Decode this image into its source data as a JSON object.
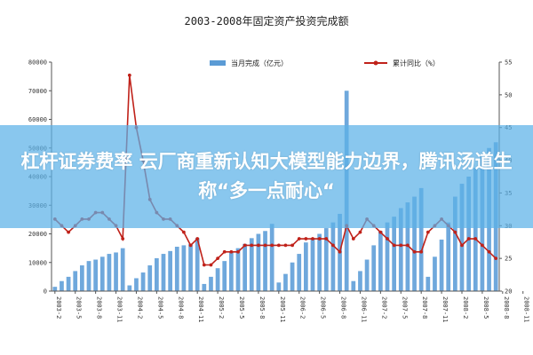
{
  "chart_data": {
    "type": "bar",
    "title": "2003-2008年固定资产投资完成额",
    "legend": [
      {
        "label": "当月完成（亿元）",
        "kind": "bar",
        "color": "#5b9bd5"
      },
      {
        "label": "累计同比（%）",
        "kind": "line",
        "color": "#c0221a"
      }
    ],
    "categories": [
      "03-2",
      "03-3",
      "03-4",
      "03-5",
      "03-6",
      "03-7",
      "03-8",
      "03-9",
      "03-10",
      "03-11",
      "03-12",
      "04-2",
      "04-3",
      "04-4",
      "04-5",
      "04-6",
      "04-7",
      "04-8",
      "04-9",
      "04-10",
      "04-11",
      "04-12",
      "05-2",
      "05-3",
      "05-4",
      "05-5",
      "05-6",
      "05-7",
      "05-8",
      "05-9",
      "05-10",
      "05-11",
      "05-12",
      "06-2",
      "06-3",
      "06-4",
      "06-5",
      "06-6",
      "06-7",
      "06-8",
      "06-9",
      "06-10",
      "06-11",
      "06-12",
      "07-2",
      "07-3",
      "07-4",
      "07-5",
      "07-6",
      "07-7",
      "07-8",
      "07-9",
      "07-10",
      "07-11",
      "07-12",
      "08-2",
      "08-3",
      "08-4",
      "08-5",
      "08-6",
      "08-7",
      "08-8",
      "08-9",
      "08-10",
      "08-11",
      "08-12"
    ],
    "x_tick_labels": [
      "2003-2",
      "2003-5",
      "2003-8",
      "2003-11",
      "2004-2",
      "2004-5",
      "2004-8",
      "2004-11",
      "2005-2",
      "2005-5",
      "2005-8",
      "2005-11",
      "2006-2",
      "2006-5",
      "2006-8",
      "2006-11",
      "2007-2",
      "2007-5",
      "2007-8",
      "2007-11",
      "2008-2",
      "2008-5",
      "2008-8",
      "2008-11"
    ],
    "series": [
      {
        "name": "当月完成（亿元）",
        "axis": "left",
        "values": [
          1500,
          3500,
          5000,
          7000,
          9000,
          10500,
          11000,
          12000,
          13000,
          13500,
          15000,
          2000,
          4500,
          6500,
          9000,
          11500,
          13000,
          14000,
          15500,
          16000,
          16500,
          18500,
          2500,
          5000,
          8000,
          10500,
          13500,
          15000,
          16500,
          18500,
          20000,
          21000,
          23500,
          3000,
          6000,
          10000,
          13000,
          17000,
          18500,
          20000,
          22000,
          24000,
          27000,
          70000,
          3500,
          7000,
          11000,
          16000,
          21000,
          24000,
          26000,
          29000,
          31000,
          33000,
          36000,
          5000,
          12000,
          18000,
          24000,
          33000,
          37500,
          40000,
          43000,
          47000,
          50000,
          52000
        ]
      },
      {
        "name": "累计同比（%）",
        "axis": "right",
        "values": [
          31,
          30,
          29,
          30,
          31,
          31,
          32,
          32,
          31,
          30,
          28,
          53,
          45,
          40,
          34,
          32,
          31,
          31,
          30,
          29,
          27,
          28,
          24,
          24,
          25,
          26,
          26,
          26,
          27,
          27,
          27,
          27,
          27,
          27,
          27,
          27,
          28,
          28,
          28,
          28,
          28,
          27,
          26,
          30,
          28,
          29,
          31,
          30,
          29,
          28,
          27,
          27,
          27,
          26,
          26,
          29,
          30,
          31,
          30,
          29,
          27,
          28,
          28,
          27,
          26,
          25
        ]
      }
    ],
    "y_left": {
      "min": 0,
      "max": 80000,
      "ticks": [
        0,
        10000,
        20000,
        30000,
        40000,
        50000,
        60000,
        70000,
        80000
      ]
    },
    "y_right": {
      "min": 20,
      "max": 55,
      "ticks": [
        20,
        25,
        30,
        35,
        40,
        45,
        50,
        55
      ]
    },
    "grid": false,
    "legend_position": "top"
  },
  "overlay": {
    "text": "杠杆证券费率 云厂商重新认知大模型能力边界，腾讯汤道生称“多一点耐心“",
    "color": "#5bb2e8"
  }
}
